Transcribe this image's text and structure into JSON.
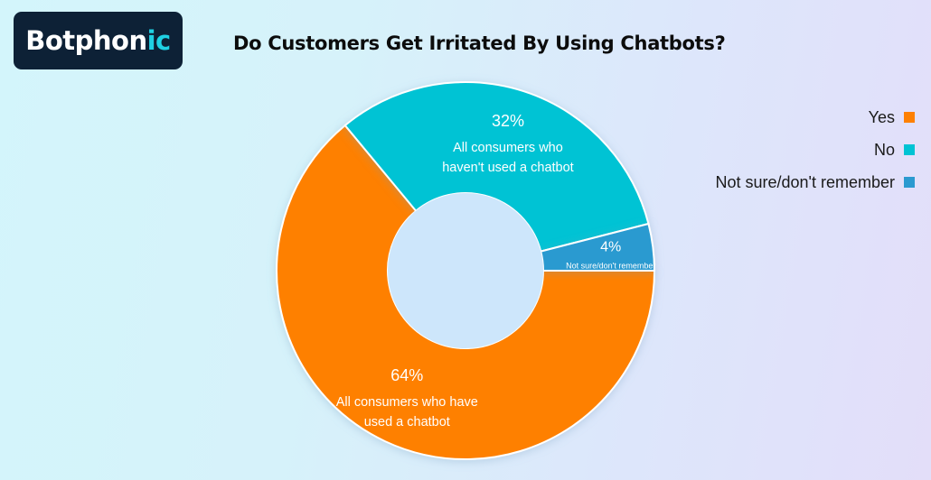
{
  "logo": {
    "brand": "Botphonic",
    "main": "Botphon",
    "accent": "ic"
  },
  "chart_data": {
    "type": "pie",
    "variant": "donut",
    "title": "Do Customers Get Irritated By Using Chatbots?",
    "slices": [
      {
        "name": "Yes",
        "value": 64,
        "label": "64%",
        "description": [
          "All consumers who have",
          "used a chatbot"
        ],
        "color": "#fe8002"
      },
      {
        "name": "No",
        "value": 32,
        "label": "32%",
        "description": [
          "All consumers who",
          "haven't used a chatbot"
        ],
        "color": "#00c3d4"
      },
      {
        "name": "Not sure/don't remember",
        "value": 4,
        "label": "4%",
        "description": [
          "Not sure/don't remember"
        ],
        "color": "#2b9ad0"
      }
    ],
    "legend_position": "right",
    "start_angle_deg": 0,
    "direction": "clockwise"
  }
}
